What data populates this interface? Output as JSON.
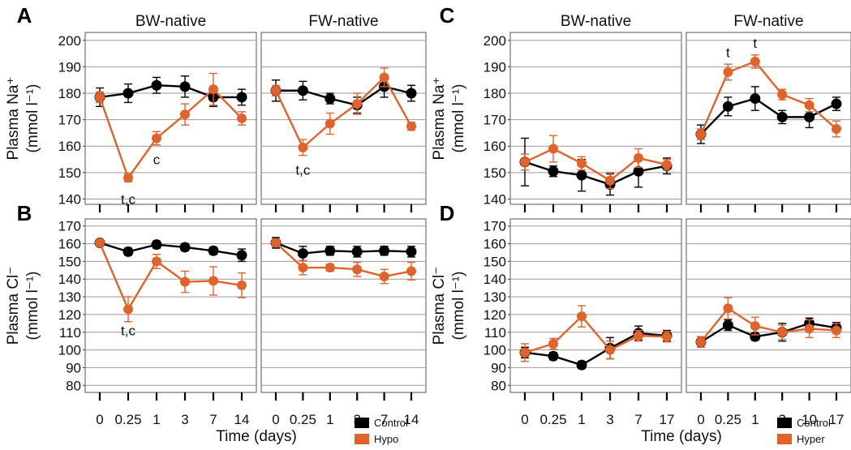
{
  "colors": {
    "control": "#000000",
    "treatment": "#e0632b",
    "grid": "#9a9a9a",
    "panel_border": "#555555"
  },
  "chart_data": [
    {
      "id": "A",
      "type": "line",
      "panel_label": "A",
      "ylabel_line1": "Plasma Na⁺",
      "ylabel_line2": "(mmol l⁻¹)",
      "ylim": [
        138,
        203
      ],
      "yticks": [
        140,
        150,
        160,
        170,
        180,
        190,
        200
      ],
      "x_ticks": [
        "0",
        "0.25",
        "1",
        "3",
        "7",
        "14"
      ],
      "xlabel": "",
      "facets": [
        {
          "title": "BW-native",
          "series": [
            {
              "role": "control",
              "mean": [
                178.5,
                180,
                183,
                182.5,
                178.5,
                178.5
              ],
              "err": [
                3.5,
                3.5,
                3,
                4,
                3.5,
                3
              ]
            },
            {
              "role": "treatment",
              "mean": [
                178.5,
                148,
                163,
                172,
                181.5,
                170.5
              ],
              "err": [
                2,
                1.5,
                2.5,
                4,
                6,
                2.5
              ]
            }
          ],
          "annotations": [
            {
              "text": "t,c",
              "x_index": 1,
              "y": 140
            },
            {
              "text": "c",
              "x_index": 2,
              "y": 155
            }
          ]
        },
        {
          "title": "FW-native",
          "series": [
            {
              "role": "control",
              "mean": [
                181,
                181,
                178,
                175.5,
                182.5,
                180
              ],
              "err": [
                4,
                3.5,
                2,
                3,
                4,
                3
              ]
            },
            {
              "role": "treatment",
              "mean": [
                181,
                159.5,
                168.5,
                176,
                186,
                167.5
              ],
              "err": [
                2,
                3,
                4,
                4,
                3.5,
                1.5
              ]
            }
          ],
          "annotations": [
            {
              "text": "t,c",
              "x_index": 1,
              "y": 151
            }
          ]
        }
      ]
    },
    {
      "id": "B",
      "type": "line",
      "panel_label": "B",
      "ylabel_line1": "Plasma Cl⁻",
      "ylabel_line2": "(mmol l⁻¹)",
      "ylim": [
        76,
        174
      ],
      "yticks": [
        80,
        90,
        100,
        110,
        120,
        130,
        140,
        150,
        160,
        170
      ],
      "x_ticks": [
        "0",
        "0.25",
        "1",
        "3",
        "7",
        "14"
      ],
      "xlabel": "Time (days)",
      "facets": [
        {
          "title": "",
          "series": [
            {
              "role": "control",
              "mean": [
                160.5,
                155.5,
                159.5,
                158,
                156,
                153.5
              ],
              "err": [
                1.5,
                2,
                2,
                2,
                2,
                3.5
              ]
            },
            {
              "role": "treatment",
              "mean": [
                160.5,
                123,
                150,
                138.5,
                139,
                136.5
              ],
              "err": [
                1.5,
                7,
                4,
                6,
                8,
                7
              ]
            }
          ],
          "annotations": [
            {
              "text": "t,c",
              "x_index": 1,
              "y": 111
            }
          ]
        },
        {
          "title": "",
          "series": [
            {
              "role": "control",
              "mean": [
                160.5,
                154.5,
                156,
                155.5,
                156,
                155.5
              ],
              "err": [
                3,
                4,
                2.5,
                3,
                2.5,
                3
              ]
            },
            {
              "role": "treatment",
              "mean": [
                160.5,
                146.5,
                146.5,
                145.5,
                141.5,
                144.5
              ],
              "err": [
                2,
                4,
                2,
                4,
                4,
                5
              ]
            }
          ],
          "annotations": []
        }
      ],
      "legend": {
        "items": [
          {
            "role": "control",
            "label": "Control"
          },
          {
            "role": "treatment",
            "label": "Hypo"
          }
        ]
      }
    },
    {
      "id": "C",
      "type": "line",
      "panel_label": "C",
      "ylabel_line1": "Plasma Na⁺",
      "ylabel_line2": "(mmol l⁻¹)",
      "ylim": [
        138,
        203
      ],
      "yticks": [
        140,
        150,
        160,
        170,
        180,
        190,
        200
      ],
      "x_ticks": [
        "0",
        "0.25",
        "1",
        "3",
        "7",
        "17"
      ],
      "xlabel": "",
      "facets": [
        {
          "title": "BW-native",
          "series": [
            {
              "role": "control",
              "mean": [
                154,
                150.5,
                149,
                145.5,
                150.5,
                152.5
              ],
              "err": [
                9,
                2,
                6,
                4,
                6,
                3
              ]
            },
            {
              "role": "treatment",
              "mean": [
                154,
                159,
                153.5,
                147,
                155.5,
                153
              ],
              "err": [
                3,
                5,
                2.5,
                3,
                3.5,
                2
              ]
            }
          ],
          "annotations": []
        },
        {
          "title": "FW-native",
          "x_ticks": [
            "0",
            "0.25",
            "1",
            "3",
            "10",
            "17"
          ],
          "series": [
            {
              "role": "control",
              "mean": [
                164.5,
                175,
                178,
                171,
                171,
                176
              ],
              "err": [
                3.5,
                3.5,
                4.5,
                2.5,
                4,
                2.5
              ]
            },
            {
              "role": "treatment",
              "mean": [
                164.5,
                188,
                192,
                179.5,
                175.5,
                166.5
              ],
              "err": [
                2,
                3,
                2.5,
                2,
                2.5,
                3
              ]
            }
          ],
          "annotations": [
            {
              "text": "t",
              "x_index": 1,
              "y": 195.5
            },
            {
              "text": "t",
              "x_index": 2,
              "y": 199
            }
          ]
        }
      ]
    },
    {
      "id": "D",
      "type": "line",
      "panel_label": "D",
      "ylabel_line1": "Plasma Cl⁻",
      "ylabel_line2": "(mmol l⁻¹)",
      "ylim": [
        76,
        174
      ],
      "yticks": [
        80,
        90,
        100,
        110,
        120,
        130,
        140,
        150,
        160,
        170
      ],
      "x_ticks": [
        "0",
        "0.25",
        "1",
        "3",
        "7",
        "17"
      ],
      "xlabel": "Time (days)",
      "facets": [
        {
          "title": "",
          "series": [
            {
              "role": "control",
              "mean": [
                98.5,
                96.5,
                91.5,
                101,
                109.5,
                108
              ],
              "err": [
                3,
                2,
                2,
                6,
                4,
                3
              ]
            },
            {
              "role": "treatment",
              "mean": [
                98.5,
                103.5,
                119,
                100,
                108,
                107.5
              ],
              "err": [
                5,
                3,
                6,
                5,
                3,
                3
              ]
            }
          ],
          "annotations": []
        },
        {
          "title": "",
          "x_ticks": [
            "0",
            "0.25",
            "1",
            "3",
            "10",
            "17"
          ],
          "series": [
            {
              "role": "control",
              "mean": [
                104.5,
                114,
                107.5,
                110,
                115,
                112.5
              ],
              "err": [
                3,
                3,
                2,
                5,
                3,
                3
              ]
            },
            {
              "role": "treatment",
              "mean": [
                104.5,
                123.5,
                113.5,
                110,
                112,
                111
              ],
              "err": [
                3,
                6,
                5,
                4,
                5,
                4
              ]
            }
          ],
          "annotations": []
        }
      ],
      "legend": {
        "items": [
          {
            "role": "control",
            "label": "Control"
          },
          {
            "role": "treatment",
            "label": "Hyper"
          }
        ]
      }
    }
  ]
}
